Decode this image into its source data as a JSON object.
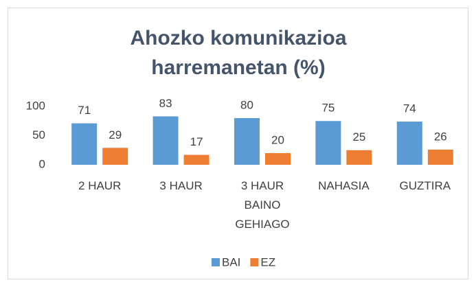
{
  "chart_data": {
    "type": "bar",
    "title": "Ahozko komunikazioa harremanetan (%)",
    "categories": [
      "2 HAUR",
      "3 HAUR",
      "3 HAUR BAINO GEHIAGO",
      "NAHASIA",
      "GUZTIRA"
    ],
    "series": [
      {
        "name": "BAI",
        "color": "#5b9bd5",
        "values": [
          71,
          83,
          80,
          75,
          74
        ]
      },
      {
        "name": "EZ",
        "color": "#ed7d31",
        "values": [
          29,
          17,
          20,
          25,
          26
        ]
      }
    ],
    "ylim": [
      0,
      100
    ],
    "yticks": [
      0,
      50,
      100
    ],
    "grid": false,
    "legend": "bottom"
  }
}
